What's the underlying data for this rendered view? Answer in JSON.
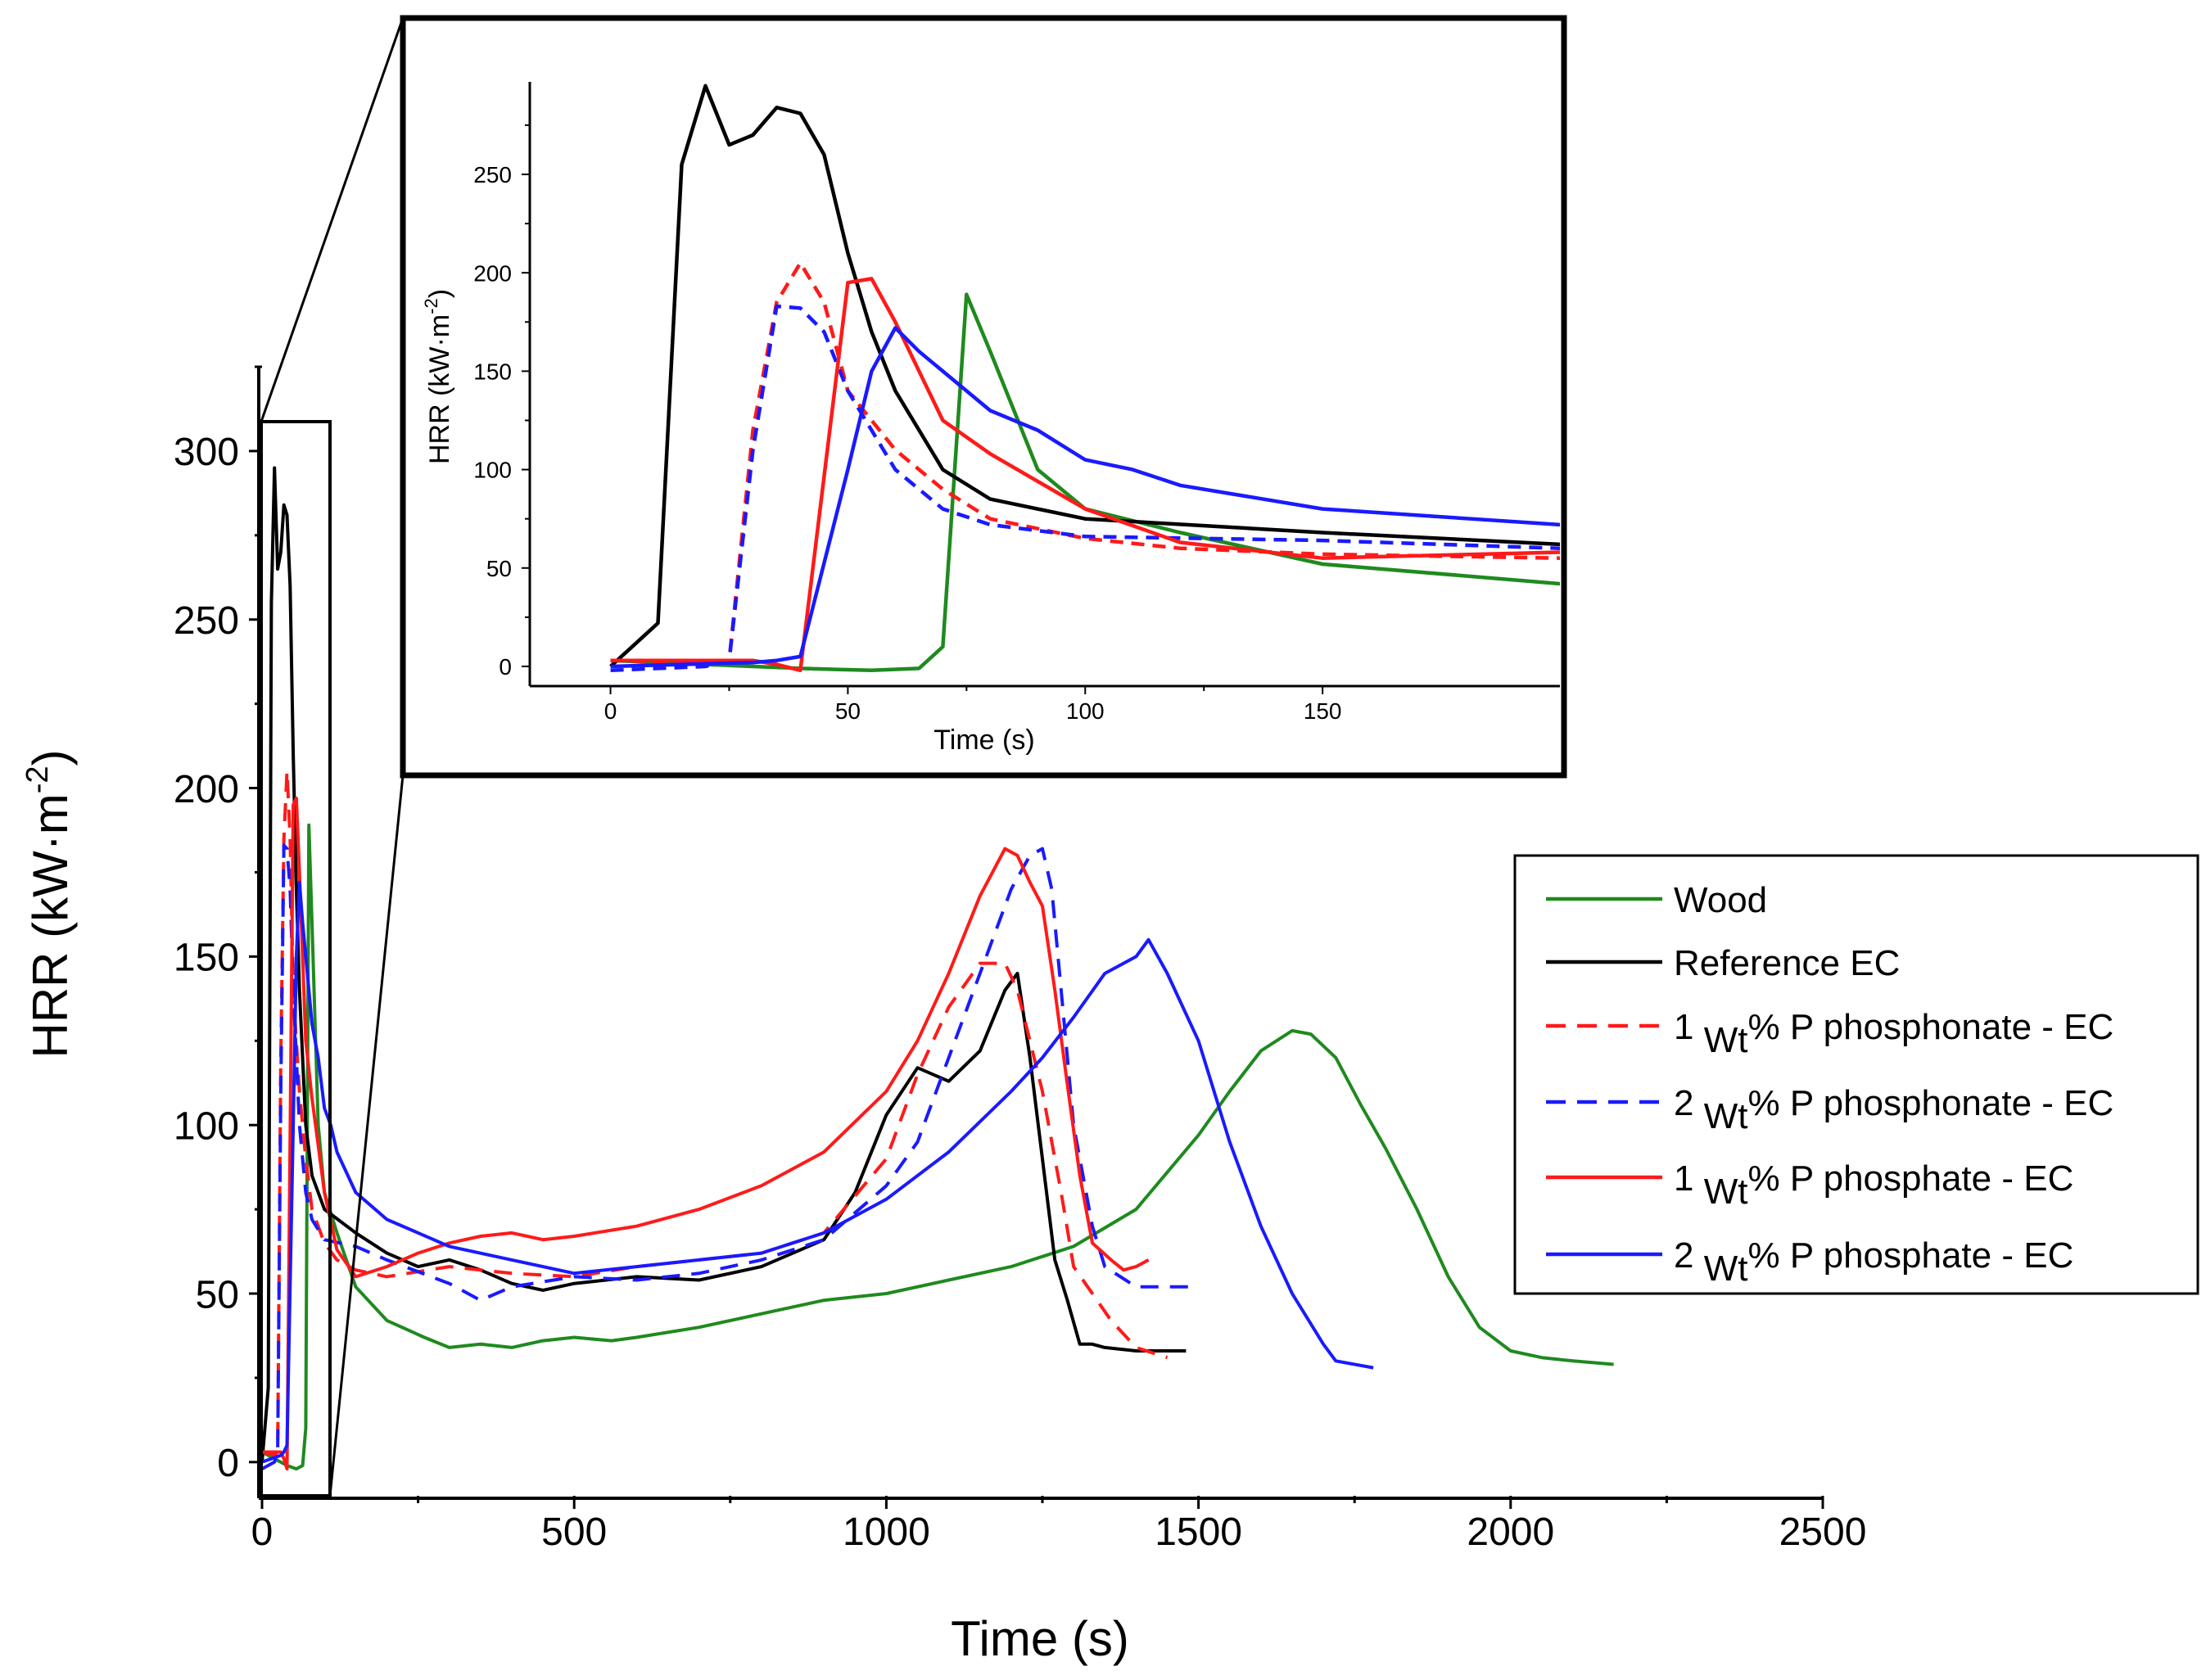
{
  "chart_data": [
    {
      "type": "line",
      "xlabel": "Time (s)",
      "ylabel": "HRR (kW·m",
      "ylabel_sup": "-2",
      "ylabel_close": ")",
      "xlim": [
        0,
        2500
      ],
      "ylim": [
        -10,
        325
      ],
      "xticks": [
        0,
        500,
        1000,
        1500,
        2000,
        2500
      ],
      "xtick_labels": [
        "0",
        "500",
        "1000",
        "1500",
        "2000",
        "2500"
      ],
      "yticks": [
        0,
        50,
        100,
        150,
        200,
        250,
        300
      ],
      "ytick_labels": [
        "0",
        "50",
        "100",
        "150",
        "200",
        "250",
        "300"
      ],
      "legend_position": "right",
      "series": [
        {
          "name": "Wood",
          "color": "#1f8a1f",
          "dash": false,
          "x": [
            0,
            20,
            40,
            55,
            65,
            70,
            75,
            80,
            90,
            100,
            120,
            150,
            200,
            260,
            300,
            350,
            400,
            450,
            500,
            560,
            600,
            700,
            800,
            900,
            1000,
            1100,
            1200,
            1300,
            1400,
            1450,
            1500,
            1550,
            1600,
            1650,
            1680,
            1720,
            1760,
            1800,
            1850,
            1900,
            1950,
            2000,
            2050,
            2100,
            2165
          ],
          "y": [
            3,
            1,
            -1,
            -2,
            -1,
            10,
            189,
            160,
            100,
            80,
            68,
            52,
            42,
            37,
            34,
            35,
            34,
            36,
            37,
            36,
            37,
            40,
            44,
            48,
            50,
            54,
            58,
            64,
            75,
            86,
            97,
            110,
            122,
            128,
            127,
            120,
            106,
            93,
            75,
            55,
            40,
            33,
            31,
            30,
            29
          ]
        },
        {
          "name": "Reference EC",
          "color": "#000000",
          "dash": false,
          "x": [
            0,
            10,
            15,
            20,
            25,
            30,
            35,
            40,
            45,
            50,
            55,
            60,
            70,
            80,
            100,
            150,
            200,
            250,
            300,
            350,
            400,
            450,
            500,
            600,
            700,
            800,
            900,
            950,
            1000,
            1050,
            1100,
            1150,
            1190,
            1210,
            1230,
            1250,
            1270,
            1290,
            1310,
            1330,
            1350,
            1400,
            1480
          ],
          "y": [
            0,
            22,
            255,
            295,
            265,
            270,
            284,
            281,
            260,
            210,
            170,
            140,
            100,
            85,
            75,
            68,
            62,
            58,
            60,
            57,
            53,
            51,
            53,
            55,
            54,
            58,
            66,
            80,
            103,
            117,
            113,
            122,
            140,
            145,
            120,
            90,
            60,
            48,
            35,
            35,
            34,
            33,
            33
          ]
        },
        {
          "name": "1 Wt% P phosphonate - EC",
          "color": "#ff1a1a",
          "dash": true,
          "x": [
            0,
            20,
            25,
            30,
            35,
            40,
            45,
            50,
            60,
            70,
            80,
            100,
            120,
            150,
            200,
            300,
            400,
            500,
            600,
            700,
            800,
            900,
            1000,
            1050,
            1100,
            1150,
            1190,
            1210,
            1250,
            1280,
            1300,
            1330,
            1360,
            1400,
            1450
          ],
          "y": [
            3,
            2,
            3,
            120,
            185,
            205,
            185,
            140,
            110,
            90,
            75,
            65,
            60,
            57,
            55,
            58,
            56,
            55,
            58,
            60,
            62,
            68,
            90,
            115,
            135,
            148,
            148,
            140,
            110,
            80,
            58,
            50,
            42,
            34,
            31
          ]
        },
        {
          "name": "2 Wt% P phosphonate - EC",
          "color": "#1a1aff",
          "dash": true,
          "x": [
            0,
            20,
            25,
            30,
            35,
            40,
            45,
            50,
            60,
            70,
            80,
            100,
            150,
            200,
            300,
            350,
            400,
            500,
            600,
            700,
            800,
            900,
            1000,
            1050,
            1100,
            1150,
            1200,
            1230,
            1250,
            1265,
            1280,
            1300,
            1330,
            1350,
            1400,
            1450,
            1490
          ],
          "y": [
            -2,
            0,
            3,
            110,
            183,
            182,
            170,
            140,
            100,
            80,
            72,
            66,
            64,
            60,
            53,
            48,
            52,
            55,
            54,
            56,
            60,
            66,
            82,
            95,
            120,
            145,
            170,
            180,
            182,
            170,
            140,
            100,
            70,
            58,
            52,
            52,
            52
          ]
        },
        {
          "name": "1 Wt% P phosphate - EC",
          "color": "#ff1a1a",
          "dash": false,
          "x": [
            0,
            30,
            35,
            40,
            50,
            55,
            60,
            70,
            80,
            100,
            120,
            150,
            200,
            250,
            300,
            350,
            400,
            450,
            500,
            600,
            700,
            800,
            900,
            1000,
            1050,
            1100,
            1150,
            1190,
            1210,
            1230,
            1250,
            1270,
            1290,
            1310,
            1330,
            1360,
            1380,
            1400,
            1420
          ],
          "y": [
            3,
            3,
            1,
            -2,
            195,
            197,
            175,
            125,
            108,
            80,
            63,
            55,
            58,
            62,
            65,
            67,
            68,
            66,
            67,
            70,
            75,
            82,
            92,
            110,
            125,
            145,
            168,
            182,
            180,
            172,
            165,
            140,
            112,
            85,
            65,
            60,
            57,
            58,
            60
          ]
        },
        {
          "name": "2 Wt% P phosphate - EC",
          "color": "#1a1aff",
          "dash": false,
          "x": [
            0,
            30,
            35,
            40,
            50,
            55,
            60,
            65,
            70,
            80,
            90,
            100,
            110,
            120,
            150,
            200,
            250,
            300,
            400,
            500,
            600,
            700,
            800,
            900,
            1000,
            1100,
            1200,
            1250,
            1300,
            1350,
            1400,
            1420,
            1450,
            1500,
            1550,
            1600,
            1650,
            1700,
            1720,
            1780
          ],
          "y": [
            0,
            2,
            3,
            5,
            100,
            150,
            172,
            160,
            150,
            130,
            120,
            105,
            100,
            92,
            80,
            72,
            68,
            64,
            60,
            56,
            58,
            60,
            62,
            68,
            78,
            92,
            110,
            120,
            132,
            145,
            150,
            155,
            145,
            125,
            95,
            70,
            50,
            35,
            30,
            28
          ]
        }
      ]
    },
    {
      "type": "line",
      "xlabel": "Time (s)",
      "ylabel": "HRR (kW·m",
      "ylabel_sup": "-2",
      "ylabel_close": ")",
      "xlim": [
        -17,
        200
      ],
      "ylim": [
        -10,
        297
      ],
      "xticks": [
        0,
        50,
        100,
        150
      ],
      "xtick_labels": [
        "0",
        "50",
        "100",
        "150"
      ],
      "yticks": [
        0,
        50,
        100,
        150,
        200,
        250
      ],
      "ytick_labels": [
        "0",
        "50",
        "100",
        "150",
        "200",
        "250"
      ],
      "series_ref": "same series as main chart (zoomed 0–200 s)"
    }
  ]
}
